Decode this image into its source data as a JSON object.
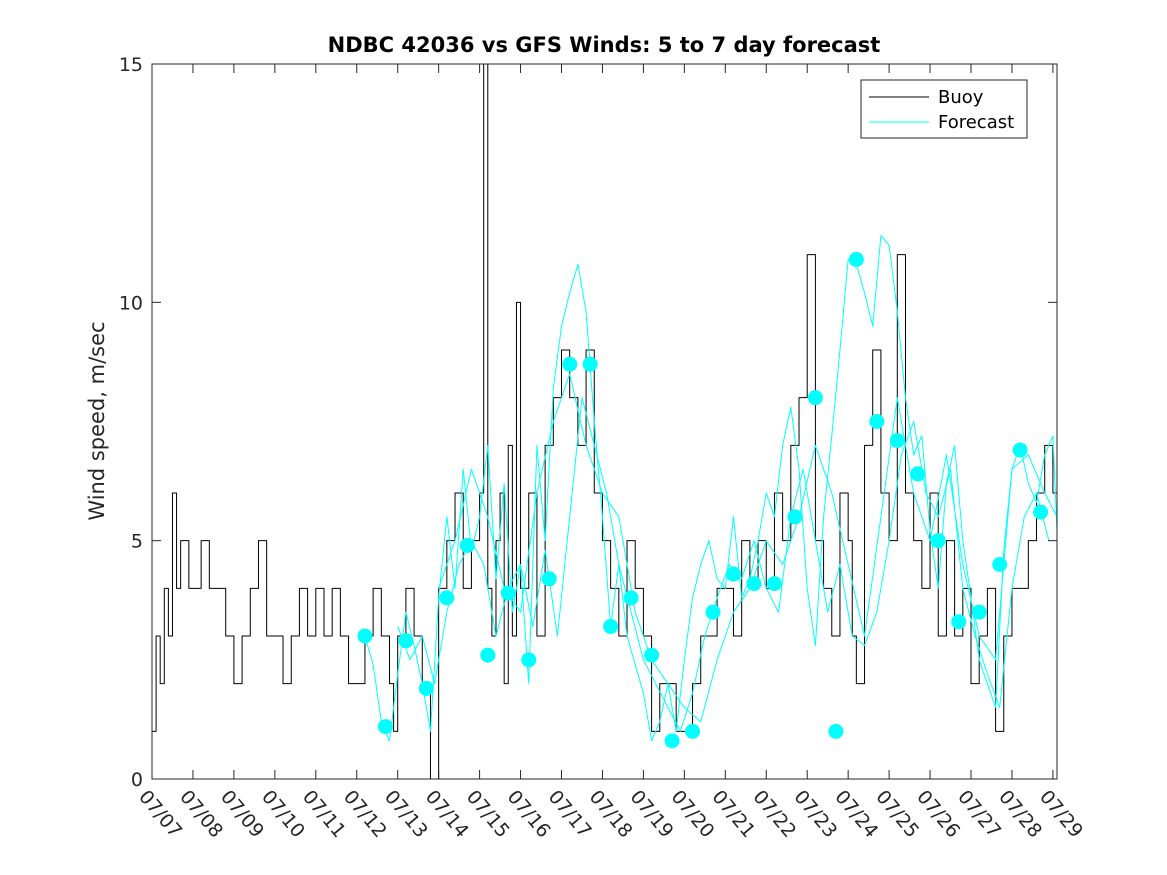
{
  "chart_data": {
    "type": "line",
    "title": "NDBC 42036 vs GFS Winds: 5 to 7 day forecast",
    "ylabel": "Wind speed, m/sec",
    "xlabel": "",
    "xlim": [
      0,
      22.1
    ],
    "ylim": [
      0,
      15
    ],
    "x_ticks": [
      {
        "x": 0,
        "label": "07/07"
      },
      {
        "x": 1,
        "label": "07/08"
      },
      {
        "x": 2,
        "label": "07/09"
      },
      {
        "x": 3,
        "label": "07/10"
      },
      {
        "x": 4,
        "label": "07/11"
      },
      {
        "x": 5,
        "label": "07/12"
      },
      {
        "x": 6,
        "label": "07/13"
      },
      {
        "x": 7,
        "label": "07/14"
      },
      {
        "x": 8,
        "label": "07/15"
      },
      {
        "x": 9,
        "label": "07/16"
      },
      {
        "x": 10,
        "label": "07/17"
      },
      {
        "x": 11,
        "label": "07/18"
      },
      {
        "x": 12,
        "label": "07/19"
      },
      {
        "x": 13,
        "label": "07/20"
      },
      {
        "x": 14,
        "label": "07/21"
      },
      {
        "x": 15,
        "label": "07/22"
      },
      {
        "x": 16,
        "label": "07/23"
      },
      {
        "x": 17,
        "label": "07/24"
      },
      {
        "x": 18,
        "label": "07/25"
      },
      {
        "x": 19,
        "label": "07/26"
      },
      {
        "x": 20,
        "label": "07/27"
      },
      {
        "x": 21,
        "label": "07/28"
      },
      {
        "x": 22,
        "label": "07/29"
      }
    ],
    "y_ticks": [
      {
        "y": 0,
        "label": "0"
      },
      {
        "y": 5,
        "label": "5"
      },
      {
        "y": 10,
        "label": "10"
      },
      {
        "y": 15,
        "label": "15"
      }
    ],
    "legend": {
      "position": "top-right",
      "entries": [
        {
          "name": "Buoy",
          "color": "#000000"
        },
        {
          "name": "Forecast",
          "color": "#00ffff"
        }
      ]
    },
    "series": [
      {
        "name": "Buoy",
        "color": "#000000",
        "x": [
          0,
          0.1,
          0.2,
          0.3,
          0.4,
          0.5,
          0.6,
          0.7,
          0.8,
          0.9,
          1.0,
          1.2,
          1.4,
          1.6,
          1.8,
          2.0,
          2.2,
          2.4,
          2.6,
          2.8,
          3.0,
          3.2,
          3.4,
          3.6,
          3.8,
          4.0,
          4.2,
          4.4,
          4.6,
          4.8,
          5.0,
          5.2,
          5.4,
          5.6,
          5.8,
          5.9,
          6.0,
          6.2,
          6.4,
          6.6,
          6.8,
          7.0,
          7.2,
          7.4,
          7.6,
          7.8,
          8.0,
          8.1,
          8.2,
          8.3,
          8.4,
          8.5,
          8.6,
          8.7,
          8.8,
          8.9,
          9.0,
          9.2,
          9.4,
          9.6,
          9.8,
          10.0,
          10.2,
          10.4,
          10.6,
          10.8,
          11.0,
          11.2,
          11.4,
          11.6,
          11.8,
          12.0,
          12.2,
          12.4,
          12.6,
          12.8,
          13.0,
          13.2,
          13.4,
          13.6,
          13.8,
          14.0,
          14.2,
          14.4,
          14.6,
          14.8,
          15.0,
          15.2,
          15.4,
          15.6,
          15.8,
          16.0,
          16.2,
          16.4,
          16.6,
          16.8,
          17.0,
          17.1,
          17.2,
          17.4,
          17.6,
          17.8,
          18.0,
          18.2,
          18.4,
          18.6,
          18.8,
          19.0,
          19.2,
          19.4,
          19.6,
          19.8,
          20.0,
          20.2,
          20.4,
          20.6,
          20.8,
          21.0,
          21.2,
          21.4,
          21.6,
          21.8,
          22.0,
          22.1
        ],
        "y": [
          1,
          3,
          2,
          4,
          3,
          6,
          4,
          5,
          5,
          4,
          4,
          5,
          4,
          4,
          3,
          2,
          3,
          4,
          5,
          3,
          3,
          2,
          3,
          4,
          3,
          4,
          3,
          4,
          3,
          2,
          2,
          3,
          4,
          3,
          2,
          1,
          3,
          4,
          3,
          2,
          0,
          4,
          5,
          6,
          4,
          5,
          6,
          15,
          4,
          3,
          5,
          6,
          2,
          7,
          3,
          10,
          4,
          6,
          3,
          7,
          8,
          9,
          8,
          7,
          9,
          6,
          5,
          4,
          3,
          5,
          4,
          3,
          1,
          2,
          2,
          1,
          1,
          2,
          3,
          3,
          4,
          4,
          3,
          5,
          4,
          5,
          4,
          6,
          5,
          7,
          8,
          11,
          5,
          4,
          3,
          6,
          5,
          3,
          2,
          7,
          9,
          6,
          5,
          11,
          6,
          5,
          4,
          6,
          3,
          5,
          3,
          4,
          2,
          3,
          4,
          1,
          3,
          4,
          4,
          5,
          6,
          7,
          6,
          5
        ]
      },
      {
        "name": "Forecast",
        "color": "#00ffff",
        "x": [
          5.2,
          5.4,
          5.6,
          5.8,
          6.0,
          6.2,
          6.4,
          6.6,
          6.8,
          7.0,
          7.2,
          7.4,
          7.6,
          7.8,
          8.0,
          8.2,
          8.4,
          8.6,
          8.8,
          9.0,
          9.2,
          9.4,
          9.6,
          9.8,
          10.0,
          10.2,
          10.4,
          10.6,
          10.8,
          11.0,
          11.2,
          11.4,
          11.6,
          11.8,
          12.0,
          12.2,
          12.4,
          12.6,
          12.8,
          13.0,
          13.2,
          13.4,
          13.6,
          13.8,
          14.0,
          14.2,
          14.4,
          14.6,
          14.8,
          15.0,
          15.2,
          15.4,
          15.6,
          15.8,
          16.0,
          16.2,
          16.4,
          16.6,
          16.8,
          17.0,
          17.2,
          17.4,
          17.6,
          17.8,
          18.0,
          18.2,
          18.4,
          18.6,
          18.8,
          19.0,
          19.2,
          19.4,
          19.6,
          19.8,
          20.0,
          20.2,
          20.4,
          20.6,
          20.8,
          21.0,
          21.2,
          21.4,
          21.6,
          21.8,
          22.0,
          22.1
        ],
        "y": [
          3,
          2.4,
          1.2,
          0.8,
          2.2,
          3.5,
          2.8,
          2.0,
          1.0,
          3.8,
          5.5,
          4.0,
          6.5,
          4.8,
          5.5,
          7.0,
          4.2,
          6.2,
          3.5,
          4.5,
          2.0,
          7.0,
          5.0,
          8.2,
          9.5,
          10.2,
          10.8,
          9.8,
          7.5,
          5.5,
          3.2,
          4.5,
          3.0,
          2.4,
          1.8,
          0.8,
          1.2,
          2.0,
          1.0,
          2.5,
          3.8,
          4.5,
          5.0,
          4.2,
          4.0,
          5.5,
          3.8,
          4.2,
          5.0,
          6.0,
          5.5,
          7.0,
          7.8,
          6.5,
          4.0,
          2.8,
          5.5,
          7.2,
          9.0,
          10.9,
          10.8,
          10.2,
          9.5,
          11.4,
          11.2,
          9.8,
          8.0,
          6.8,
          7.2,
          5.2,
          4.0,
          6.2,
          7.0,
          5.0,
          3.8,
          2.5,
          2.0,
          1.5,
          4.8,
          6.5,
          7.0,
          6.2,
          5.8,
          6.8,
          7.2,
          5.2
        ]
      },
      {
        "name": "",
        "color": "#00ffff",
        "x": [
          6.0,
          6.3,
          6.6,
          6.9,
          7.2,
          7.5,
          7.8,
          8.1,
          8.4,
          8.7,
          9.0,
          9.3,
          9.6,
          9.9,
          10.2,
          10.5,
          10.8,
          11.1,
          11.4,
          11.7,
          12.0,
          12.3,
          12.6,
          12.9,
          13.2,
          13.5,
          13.8,
          14.1,
          14.4,
          14.7,
          15.0,
          15.3,
          15.6,
          15.9,
          16.2,
          16.5,
          16.8,
          17.1,
          17.4,
          17.7,
          18.0,
          18.3,
          18.6,
          18.9,
          19.2,
          19.5,
          19.8,
          20.1,
          20.4,
          20.7,
          21.0,
          21.3,
          21.6,
          21.9
        ],
        "y": [
          3.2,
          2.5,
          3.0,
          2.0,
          3.5,
          4.5,
          5.0,
          4.5,
          3.0,
          4.0,
          4.5,
          3.2,
          4.8,
          3.0,
          5.5,
          8.0,
          7.0,
          6.0,
          4.5,
          3.5,
          2.5,
          2.0,
          1.5,
          1.0,
          1.8,
          3.0,
          3.8,
          4.5,
          4.2,
          5.0,
          4.0,
          3.5,
          5.5,
          6.5,
          5.0,
          3.5,
          4.5,
          3.0,
          2.8,
          3.5,
          5.0,
          6.8,
          7.5,
          6.0,
          5.5,
          6.5,
          4.0,
          3.0,
          2.2,
          1.5,
          4.0,
          5.5,
          6.0,
          5.0
        ]
      },
      {
        "name": "",
        "color": "#00ffff",
        "x": [
          7.0,
          7.4,
          7.8,
          8.2,
          8.6,
          9.0,
          9.4,
          9.8,
          10.2,
          10.6,
          11.0,
          11.4,
          11.8,
          12.2,
          12.6,
          13.0,
          13.4,
          13.8,
          14.2,
          14.6,
          15.0,
          15.4,
          15.8,
          16.2,
          16.6,
          17.0,
          17.4,
          17.8,
          18.2,
          18.6,
          19.0,
          19.4,
          19.8,
          20.2,
          20.6,
          21.0,
          21.4,
          21.8,
          22.1
        ],
        "y": [
          4.0,
          5.0,
          6.5,
          5.5,
          4.0,
          3.5,
          6.0,
          7.5,
          8.5,
          7.0,
          6.0,
          5.5,
          3.5,
          2.5,
          2.0,
          1.5,
          1.2,
          2.5,
          3.5,
          4.0,
          5.0,
          4.5,
          5.5,
          7.0,
          6.0,
          4.5,
          3.0,
          5.5,
          8.0,
          6.0,
          5.0,
          6.8,
          4.5,
          3.0,
          2.5,
          6.5,
          6.8,
          6.0,
          5.5
        ]
      }
    ],
    "markers": {
      "name": "Forecast",
      "color": "#00ffff",
      "x": [
        5.2,
        5.7,
        6.2,
        6.7,
        7.2,
        7.7,
        8.2,
        8.7,
        9.2,
        9.7,
        10.2,
        10.7,
        11.2,
        11.7,
        12.2,
        12.7,
        13.2,
        13.7,
        14.2,
        14.7,
        15.2,
        15.7,
        16.2,
        16.7,
        17.2,
        17.7,
        18.2,
        18.7,
        19.2,
        19.7,
        20.2,
        20.7,
        21.2,
        21.7
      ],
      "y": [
        3.0,
        1.1,
        2.9,
        1.9,
        3.8,
        4.9,
        2.6,
        3.9,
        2.5,
        4.2,
        8.7,
        8.7,
        3.2,
        3.8,
        2.6,
        0.8,
        1.0,
        3.5,
        4.3,
        4.1,
        4.1,
        5.5,
        8.0,
        1.0,
        10.9,
        7.5,
        7.1,
        6.4,
        5.0,
        3.3,
        3.5,
        4.5,
        6.9,
        5.6
      ]
    }
  }
}
